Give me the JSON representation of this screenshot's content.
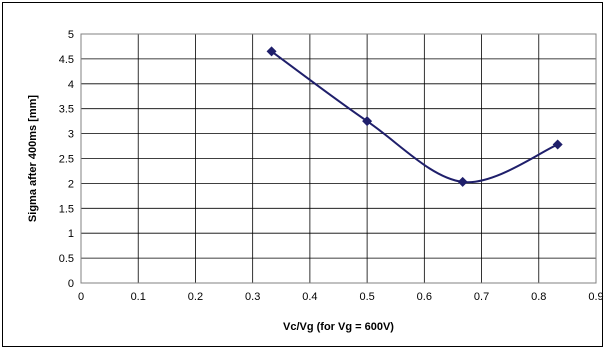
{
  "chart_data": {
    "type": "line",
    "title": "",
    "xlabel": "Vc/Vg (for Vg = 600V)",
    "ylabel": "Sigma after 400ms [mm]",
    "xlim": [
      0,
      0.9
    ],
    "ylim": [
      0,
      5
    ],
    "x_ticks": [
      "0",
      "0.1",
      "0.2",
      "0.3",
      "0.4",
      "0.5",
      "0.6",
      "0.7",
      "0.8",
      "0.9"
    ],
    "y_ticks": [
      "0",
      "0.5",
      "1",
      "1.5",
      "2",
      "2.5",
      "3",
      "3.5",
      "4",
      "4.5",
      "5"
    ],
    "grid": true,
    "series": [
      {
        "x": [
          0.333,
          0.5,
          0.667,
          0.833
        ],
        "y": [
          4.65,
          3.25,
          2.03,
          2.78
        ],
        "marker": "diamond",
        "smooth": true,
        "color": "#1f1f6b"
      }
    ]
  }
}
